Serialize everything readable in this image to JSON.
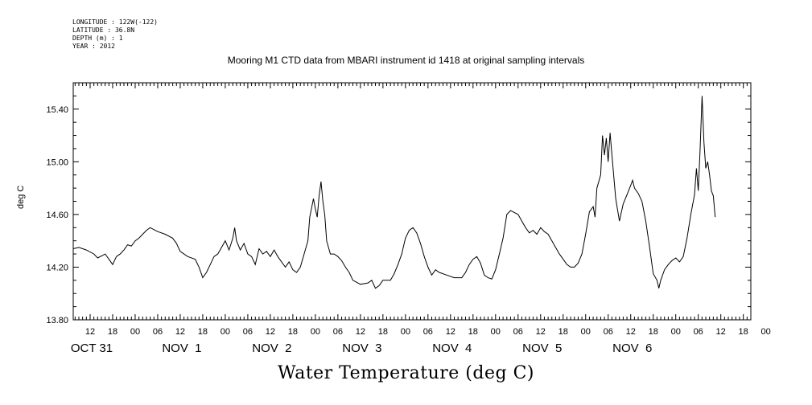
{
  "header": {
    "lines": [
      "LONGITUDE : 122W(-122)",
      "LATITUDE : 36.8N",
      "DEPTH (m) : 1",
      "YEAR : 2012"
    ]
  },
  "chart_data": {
    "type": "line",
    "title": "Mooring M1 CTD data from MBARI instrument id 1418 at original sampling intervals",
    "ylabel": "deg C",
    "xlabel": "Water Temperature (deg C)",
    "ylim": [
      13.8,
      15.6
    ],
    "yticks": [
      "13.80",
      "14.20",
      "14.60",
      "15.00",
      "15.40"
    ],
    "x_hour_labels": [
      "12",
      "18",
      "00",
      "06",
      "12",
      "18",
      "00",
      "06",
      "12",
      "18",
      "00",
      "06",
      "12",
      "18",
      "00",
      "06",
      "12",
      "18",
      "00",
      "06",
      "12",
      "18",
      "00",
      "06",
      "12",
      "18",
      "00",
      "06",
      "12",
      "18",
      "00"
    ],
    "day_labels": [
      "OCT 31",
      "NOV  1",
      "NOV  2",
      "NOV  3",
      "NOV  4",
      "NOV  5",
      "NOV  6"
    ],
    "x_unit": "hours since 2012-10-31 00:00",
    "xlim": [
      7.5,
      188
    ],
    "series": [
      {
        "values": [
          [
            7.5,
            14.34
          ],
          [
            9,
            14.35
          ],
          [
            11,
            14.33
          ],
          [
            13,
            14.3
          ],
          [
            14,
            14.27
          ],
          [
            16,
            14.3
          ],
          [
            17,
            14.26
          ],
          [
            18,
            14.22
          ],
          [
            19,
            14.28
          ],
          [
            20,
            14.3
          ],
          [
            21,
            14.33
          ],
          [
            22,
            14.37
          ],
          [
            23,
            14.36
          ],
          [
            24,
            14.4
          ],
          [
            25,
            14.42
          ],
          [
            26,
            14.45
          ],
          [
            27,
            14.48
          ],
          [
            28,
            14.5
          ],
          [
            30,
            14.47
          ],
          [
            32,
            14.45
          ],
          [
            34,
            14.42
          ],
          [
            35,
            14.38
          ],
          [
            36,
            14.32
          ],
          [
            38,
            14.28
          ],
          [
            40,
            14.26
          ],
          [
            41,
            14.2
          ],
          [
            42,
            14.12
          ],
          [
            43,
            14.16
          ],
          [
            44,
            14.22
          ],
          [
            45,
            14.28
          ],
          [
            46,
            14.3
          ],
          [
            47,
            14.35
          ],
          [
            48,
            14.4
          ],
          [
            49,
            14.33
          ],
          [
            50,
            14.42
          ],
          [
            50.5,
            14.5
          ],
          [
            51,
            14.4
          ],
          [
            52,
            14.33
          ],
          [
            53,
            14.38
          ],
          [
            54,
            14.3
          ],
          [
            55,
            14.28
          ],
          [
            56,
            14.22
          ],
          [
            57,
            14.34
          ],
          [
            58,
            14.3
          ],
          [
            59,
            14.32
          ],
          [
            60,
            14.28
          ],
          [
            61,
            14.33
          ],
          [
            62,
            14.28
          ],
          [
            63,
            14.24
          ],
          [
            64,
            14.2
          ],
          [
            65,
            14.24
          ],
          [
            66,
            14.18
          ],
          [
            67,
            14.16
          ],
          [
            68,
            14.2
          ],
          [
            69,
            14.3
          ],
          [
            70,
            14.4
          ],
          [
            70.5,
            14.58
          ],
          [
            71,
            14.65
          ],
          [
            71.5,
            14.72
          ],
          [
            72,
            14.64
          ],
          [
            72.5,
            14.58
          ],
          [
            73,
            14.74
          ],
          [
            73.5,
            14.85
          ],
          [
            74,
            14.7
          ],
          [
            74.5,
            14.6
          ],
          [
            75,
            14.4
          ],
          [
            76,
            14.3
          ],
          [
            77,
            14.3
          ],
          [
            78,
            14.28
          ],
          [
            79,
            14.25
          ],
          [
            80,
            14.2
          ],
          [
            81,
            14.16
          ],
          [
            82,
            14.1
          ],
          [
            84,
            14.07
          ],
          [
            86,
            14.08
          ],
          [
            87,
            14.1
          ],
          [
            88,
            14.04
          ],
          [
            89,
            14.06
          ],
          [
            90,
            14.1
          ],
          [
            92,
            14.1
          ],
          [
            93,
            14.15
          ],
          [
            94,
            14.22
          ],
          [
            95,
            14.3
          ],
          [
            96,
            14.42
          ],
          [
            97,
            14.48
          ],
          [
            98,
            14.5
          ],
          [
            99,
            14.46
          ],
          [
            100,
            14.38
          ],
          [
            101,
            14.28
          ],
          [
            102,
            14.2
          ],
          [
            103,
            14.14
          ],
          [
            104,
            14.18
          ],
          [
            105,
            14.16
          ],
          [
            107,
            14.14
          ],
          [
            109,
            14.12
          ],
          [
            111,
            14.12
          ],
          [
            112,
            14.16
          ],
          [
            113,
            14.22
          ],
          [
            114,
            14.26
          ],
          [
            115,
            14.28
          ],
          [
            116,
            14.23
          ],
          [
            117,
            14.14
          ],
          [
            118,
            14.12
          ],
          [
            119,
            14.11
          ],
          [
            120,
            14.18
          ],
          [
            121,
            14.3
          ],
          [
            122,
            14.42
          ],
          [
            123,
            14.6
          ],
          [
            124,
            14.63
          ],
          [
            126,
            14.6
          ],
          [
            127,
            14.55
          ],
          [
            128,
            14.5
          ],
          [
            129,
            14.46
          ],
          [
            130,
            14.48
          ],
          [
            131,
            14.45
          ],
          [
            132,
            14.5
          ],
          [
            133,
            14.47
          ],
          [
            134,
            14.45
          ],
          [
            135,
            14.4
          ],
          [
            136,
            14.35
          ],
          [
            137,
            14.3
          ],
          [
            138,
            14.26
          ],
          [
            139,
            14.22
          ],
          [
            140,
            14.2
          ],
          [
            141,
            14.2
          ],
          [
            142,
            14.23
          ],
          [
            143,
            14.3
          ],
          [
            144,
            14.45
          ],
          [
            145,
            14.62
          ],
          [
            146,
            14.66
          ],
          [
            146.5,
            14.58
          ],
          [
            147,
            14.8
          ],
          [
            148,
            14.9
          ],
          [
            148.5,
            15.2
          ],
          [
            149,
            15.05
          ],
          [
            149.5,
            15.18
          ],
          [
            150,
            15.0
          ],
          [
            150.5,
            15.22
          ],
          [
            151,
            15.05
          ],
          [
            152,
            14.72
          ],
          [
            153,
            14.55
          ],
          [
            154,
            14.68
          ],
          [
            155,
            14.75
          ],
          [
            156,
            14.82
          ],
          [
            156.5,
            14.86
          ],
          [
            157,
            14.8
          ],
          [
            158,
            14.76
          ],
          [
            159,
            14.7
          ],
          [
            160,
            14.55
          ],
          [
            161,
            14.36
          ],
          [
            162,
            14.15
          ],
          [
            163,
            14.1
          ],
          [
            163.5,
            14.04
          ],
          [
            164,
            14.1
          ],
          [
            165,
            14.18
          ],
          [
            166,
            14.22
          ],
          [
            167,
            14.25
          ],
          [
            168,
            14.27
          ],
          [
            169,
            14.24
          ],
          [
            170,
            14.28
          ],
          [
            171,
            14.42
          ],
          [
            172,
            14.6
          ],
          [
            173,
            14.75
          ],
          [
            173.5,
            14.95
          ],
          [
            174,
            14.78
          ],
          [
            174.5,
            15.1
          ],
          [
            175,
            15.5
          ],
          [
            175.5,
            15.15
          ],
          [
            176,
            14.95
          ],
          [
            176.5,
            15.0
          ],
          [
            177,
            14.9
          ],
          [
            177.5,
            14.78
          ],
          [
            178,
            14.74
          ],
          [
            178.5,
            14.58
          ]
        ]
      }
    ],
    "grid": false,
    "legend": "none"
  }
}
